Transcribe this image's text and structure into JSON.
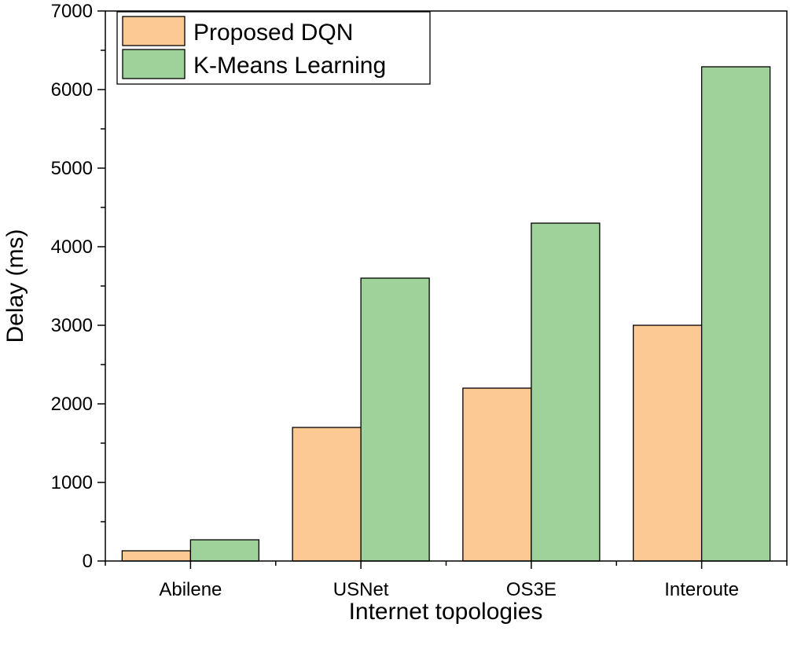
{
  "chart_data": {
    "type": "bar",
    "title": "",
    "xlabel": "Internet topologies",
    "ylabel": "Delay (ms)",
    "categories": [
      "Abilene",
      "USNet",
      "OS3E",
      "Interoute"
    ],
    "series": [
      {
        "name": "Proposed DQN",
        "color": "#fcc995",
        "values": [
          130,
          1700,
          2200,
          3000
        ]
      },
      {
        "name": "K-Means Learning",
        "color": "#9ed29a",
        "values": [
          270,
          3600,
          4300,
          6290
        ]
      }
    ],
    "ylim": [
      0,
      7000
    ],
    "yticks": [
      "0",
      "1000",
      "2000",
      "3000",
      "4000",
      "5000",
      "6000",
      "7000"
    ],
    "grid": false,
    "legend_position": "top-left"
  }
}
